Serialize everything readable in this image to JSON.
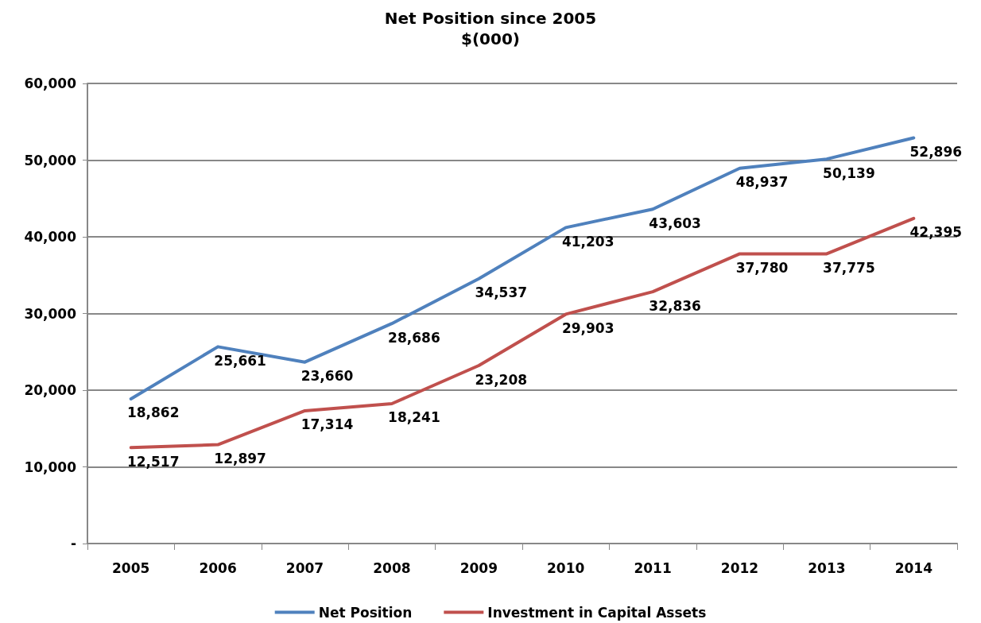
{
  "chart_data": {
    "type": "line",
    "title": "Net Position since 2005",
    "subtitle": "$(000)",
    "categories": [
      "2005",
      "2006",
      "2007",
      "2008",
      "2009",
      "2010",
      "2011",
      "2012",
      "2013",
      "2014"
    ],
    "series": [
      {
        "name": "Net Position",
        "color": "#4f81bd",
        "values": [
          18862,
          25661,
          23660,
          28686,
          34537,
          41203,
          43603,
          48937,
          50139,
          52896
        ],
        "value_labels": [
          "18,862",
          "25,661",
          "23,660",
          "28,686",
          "34,537",
          "41,203",
          "43,603",
          "48,937",
          "50,139",
          "52,896"
        ]
      },
      {
        "name": "Investment in Capital Assets",
        "color": "#c0504d",
        "values": [
          12517,
          12897,
          17314,
          18241,
          23208,
          29903,
          32836,
          37780,
          37775,
          42395
        ],
        "value_labels": [
          "12,517",
          "12,897",
          "17,314",
          "18,241",
          "23,208",
          "29,903",
          "32,836",
          "37,780",
          "37,775",
          "42,395"
        ]
      }
    ],
    "ylim": [
      0,
      60000
    ],
    "yticks": [
      {
        "value": 0,
        "label": "-"
      },
      {
        "value": 10000,
        "label": "10,000"
      },
      {
        "value": 20000,
        "label": "20,000"
      },
      {
        "value": 30000,
        "label": "30,000"
      },
      {
        "value": 40000,
        "label": "40,000"
      },
      {
        "value": 50000,
        "label": "50,000"
      },
      {
        "value": 60000,
        "label": "60,000"
      }
    ],
    "grid": "y",
    "legend": "bottom",
    "marker": "none",
    "line_style": "solid"
  }
}
